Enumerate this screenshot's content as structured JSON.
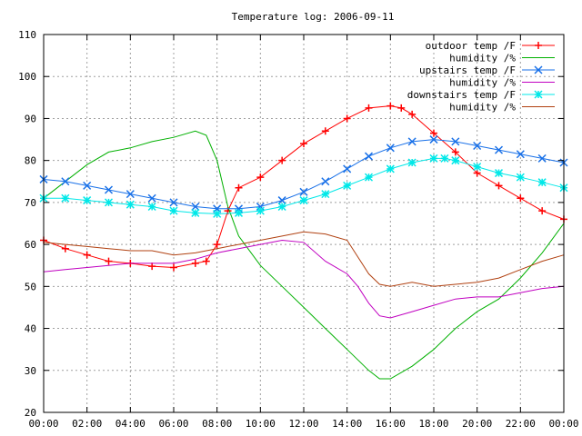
{
  "chart_data": {
    "type": "line",
    "title": "Temperature log: 2006-09-11",
    "xlabel": "",
    "ylabel": "",
    "xlim": [
      0,
      24
    ],
    "ylim": [
      20,
      110
    ],
    "x_ticks": [
      "00:00",
      "02:00",
      "04:00",
      "06:00",
      "08:00",
      "10:00",
      "12:00",
      "14:00",
      "16:00",
      "18:00",
      "20:00",
      "22:00",
      "00:00"
    ],
    "y_ticks": [
      "20",
      "30",
      "40",
      "50",
      "60",
      "70",
      "80",
      "90",
      "100",
      "110"
    ],
    "grid": true,
    "legend_position": "top-right",
    "series": [
      {
        "name": "outdoor temp /F",
        "color": "#ff0000",
        "marker": "plus",
        "x": [
          0,
          1,
          2,
          3,
          4,
          5,
          6,
          7,
          7.5,
          8,
          8.5,
          9,
          10,
          11,
          12,
          13,
          14,
          15,
          16,
          16.5,
          17,
          18,
          19,
          20,
          21,
          22,
          23,
          24
        ],
        "y": [
          61,
          59,
          57.5,
          56,
          55.5,
          54.8,
          54.5,
          55.5,
          56,
          60,
          68,
          73.5,
          76,
          80,
          84,
          87,
          90,
          92.5,
          93,
          92.5,
          91,
          86.5,
          82,
          77,
          74,
          71,
          68,
          66
        ]
      },
      {
        "name": "humidity /%",
        "color": "#00b000",
        "marker": "none",
        "x": [
          0,
          1,
          2,
          3,
          4,
          5,
          6,
          7,
          7.5,
          8,
          8.5,
          9,
          10,
          11,
          12,
          13,
          14,
          15,
          15.5,
          16,
          17,
          18,
          19,
          20,
          21,
          22,
          23,
          24
        ],
        "y": [
          71,
          75,
          79,
          82,
          83,
          84.5,
          85.5,
          87,
          86,
          80,
          69,
          62,
          55,
          50,
          45,
          40,
          35,
          30,
          28,
          28,
          31,
          35,
          40,
          44,
          47,
          52,
          58,
          65
        ]
      },
      {
        "name": "upstairs temp /F",
        "color": "#1870e8",
        "marker": "x",
        "x": [
          0,
          1,
          2,
          3,
          4,
          5,
          6,
          7,
          8,
          9,
          10,
          11,
          12,
          13,
          14,
          15,
          16,
          17,
          18,
          19,
          20,
          21,
          22,
          23,
          24
        ],
        "y": [
          75.5,
          75,
          74,
          73,
          72,
          71,
          70,
          69,
          68.5,
          68.5,
          69,
          70.5,
          72.5,
          75,
          78,
          81,
          83,
          84.5,
          85,
          84.5,
          83.5,
          82.5,
          81.5,
          80.5,
          79.5
        ]
      },
      {
        "name": "humidity /%",
        "color": "#c000c0",
        "marker": "none",
        "x": [
          0,
          1,
          2,
          3,
          4,
          5,
          6,
          7,
          8,
          9,
          10,
          11,
          12,
          13,
          14,
          14.5,
          15,
          15.5,
          16,
          17,
          18,
          19,
          20,
          21,
          22,
          23,
          24
        ],
        "y": [
          53.5,
          54,
          54.5,
          55,
          55.5,
          55.5,
          55.5,
          56.5,
          58,
          59,
          60,
          61,
          60.5,
          56,
          53,
          50,
          46,
          43,
          42.5,
          44,
          45.5,
          47,
          47.5,
          47.5,
          48.5,
          49.5,
          50
        ]
      },
      {
        "name": "downstairs temp /F",
        "color": "#00e8e8",
        "marker": "star",
        "x": [
          0,
          1,
          2,
          3,
          4,
          5,
          6,
          7,
          8,
          9,
          10,
          11,
          12,
          13,
          14,
          15,
          16,
          17,
          18,
          18.5,
          19,
          20,
          21,
          22,
          23,
          24
        ],
        "y": [
          71,
          71,
          70.5,
          70,
          69.5,
          69,
          68,
          67.5,
          67.3,
          67.5,
          68,
          69,
          70.5,
          72,
          74,
          76,
          78,
          79.5,
          80.5,
          80.5,
          80,
          78.5,
          77,
          76,
          74.8,
          73.5
        ]
      },
      {
        "name": "humidity /%",
        "color": "#b04010",
        "marker": "none",
        "x": [
          0,
          1,
          2,
          3,
          4,
          5,
          6,
          7,
          8,
          9,
          10,
          11,
          12,
          13,
          14,
          14.5,
          15,
          15.5,
          16,
          17,
          18,
          19,
          20,
          21,
          22,
          23,
          24
        ],
        "y": [
          60.5,
          60,
          59.5,
          59,
          58.5,
          58.5,
          57.5,
          58,
          59,
          60,
          61,
          62,
          63,
          62.5,
          61,
          57,
          53,
          50.5,
          50,
          51,
          50,
          50.5,
          51,
          52,
          54,
          56,
          57.5
        ]
      }
    ]
  }
}
